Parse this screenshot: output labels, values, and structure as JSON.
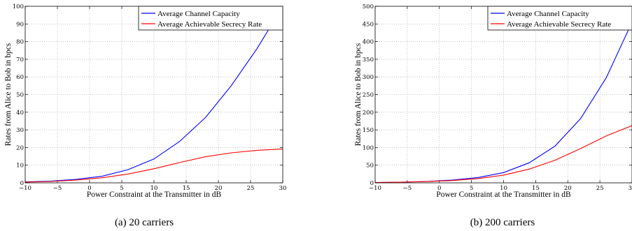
{
  "chart_data": [
    {
      "type": "line",
      "caption": "(a)  20 carriers",
      "xlabel": "Power Constraint at the Transmitter in dB",
      "ylabel": "Rates from Alice to Bob in bpcs",
      "xlim": [
        -10,
        30
      ],
      "ylim": [
        0,
        100
      ],
      "xticks": [
        "−10",
        "−5",
        "0",
        "5",
        "10",
        "15",
        "20",
        "25",
        "30"
      ],
      "yticks": [
        "0",
        "10",
        "20",
        "30",
        "40",
        "50",
        "60",
        "70",
        "80",
        "90",
        "100"
      ],
      "grid": true,
      "legend_position": "top-right",
      "series": [
        {
          "name": "Average Channel Capacity",
          "color": "#0000ff",
          "x": [
            -10,
            -6,
            -2,
            2,
            6,
            10,
            14,
            18,
            22,
            26,
            30
          ],
          "y": [
            0.5,
            1.0,
            2.0,
            3.8,
            7.5,
            13.5,
            23.5,
            37,
            55,
            76,
            100
          ]
        },
        {
          "name": "Average Achievable Secrecy Rate",
          "color": "#ff0000",
          "x": [
            -10,
            -6,
            -2,
            2,
            6,
            10,
            14,
            18,
            22,
            26,
            30
          ],
          "y": [
            0.4,
            0.8,
            1.6,
            2.9,
            5.0,
            8.0,
            11.5,
            14.8,
            17.0,
            18.4,
            19.2
          ]
        }
      ]
    },
    {
      "type": "line",
      "caption": "(b)  200 carriers",
      "xlabel": "Power Constraint at the Transmitter in dB",
      "ylabel": "Rates from Alice to Bob in bpcs",
      "xlim": [
        -10,
        30
      ],
      "ylim": [
        0,
        500
      ],
      "xticks": [
        "−10",
        "−5",
        "0",
        "5",
        "10",
        "15",
        "20",
        "25",
        "30"
      ],
      "yticks": [
        "0",
        "50",
        "100",
        "150",
        "200",
        "250",
        "300",
        "350",
        "400",
        "450",
        "500"
      ],
      "grid": true,
      "legend_position": "top-right",
      "series": [
        {
          "name": "Average Channel Capacity",
          "color": "#0000ff",
          "x": [
            -10,
            -6,
            -2,
            2,
            6,
            10,
            14,
            18,
            22,
            26,
            30
          ],
          "y": [
            1,
            2,
            4,
            8,
            15,
            29,
            57,
            104,
            182,
            298,
            455
          ]
        },
        {
          "name": "Average Achievable Secrecy Rate",
          "color": "#ff0000",
          "x": [
            -10,
            -6,
            -2,
            2,
            6,
            10,
            14,
            18,
            22,
            26,
            30
          ],
          "y": [
            1,
            2,
            3.5,
            6.5,
            12,
            22,
            39,
            64,
            97,
            133,
            162
          ]
        }
      ]
    }
  ]
}
